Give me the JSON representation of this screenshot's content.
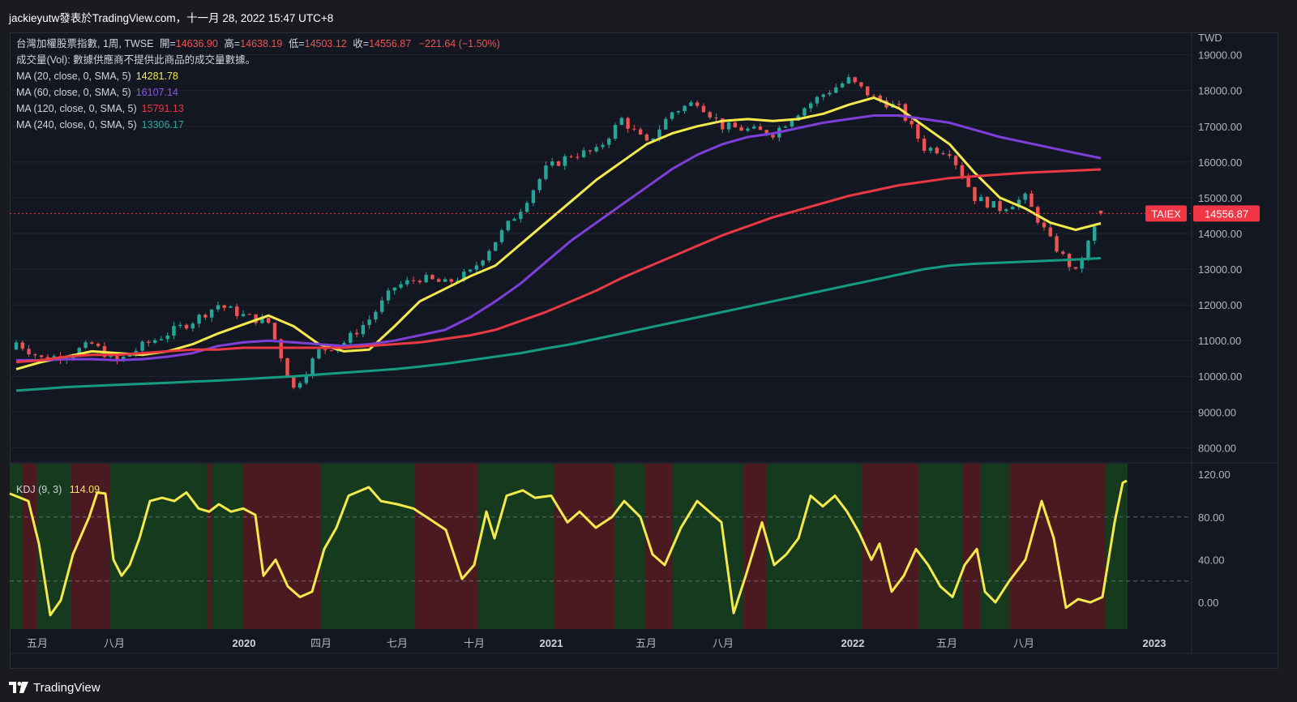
{
  "header": {
    "title": "jackieyutw發表於TradingView.com，十一月 28, 2022 15:47 UTC+8"
  },
  "legend": {
    "symbol_line": "台灣加權股票指數, 1周, TWSE",
    "open_label": "開=",
    "open": "14636.90",
    "high_label": "高=",
    "high": "14638.19",
    "low_label": "低=",
    "low": "14503.12",
    "close_label": "收=",
    "close": "14556.87",
    "change": "−221.64 (−1.50%)",
    "volume_line": "成交量(Vol): 數據供應商不提供此商品的成交量數據。",
    "ma": [
      {
        "label": "MA (20, close, 0, SMA, 5)",
        "value": "14281.78",
        "color": "#f5e94b"
      },
      {
        "label": "MA (60, close, 0, SMA, 5)",
        "value": "16107.14",
        "color": "#7e3fd9"
      },
      {
        "label": "MA (120, close, 0, SMA, 5)",
        "value": "15791.13",
        "color": "#ea3943"
      },
      {
        "label": "MA (240, close, 0, SMA, 5)",
        "value": "13306.17",
        "color": "#169b83"
      }
    ]
  },
  "price_axis": {
    "currency": "TWD",
    "ticks": [
      "19000.00",
      "18000.00",
      "17000.00",
      "16000.00",
      "15000.00",
      "14000.00",
      "13000.00",
      "12000.00",
      "11000.00",
      "10000.00",
      "9000.00",
      "8000.00"
    ]
  },
  "price_badge": {
    "symbol": "TAIEX",
    "value": "14556.87"
  },
  "kdj": {
    "label": "KDJ (9, 3)",
    "value": "114.09",
    "ticks": [
      "120.00",
      "80.00",
      "40.00",
      "0.00"
    ]
  },
  "time_axis": {
    "labels": [
      "五月",
      "八月",
      "2020",
      "四月",
      "七月",
      "十月",
      "2021",
      "五月",
      "八月",
      "2022",
      "五月",
      "八月",
      "2023"
    ]
  },
  "footer": {
    "brand": "TradingView"
  },
  "colors": {
    "up": "#26a69a",
    "down": "#ef5350",
    "ma20": "#f5e94b",
    "ma60": "#7e3fd9",
    "ma120": "#ea3943",
    "ma240": "#169b83",
    "kdj": "#f5e94b",
    "bg_green": "#153a1d",
    "bg_red": "#4a1a20",
    "badge": "#f23645"
  },
  "chart_data": {
    "type": "line",
    "title": "台灣加權股票指數, 1周, TWSE",
    "ylabel": "TWD",
    "ylim": [
      7600,
      19400
    ],
    "x": [
      "2019-04",
      "2019-05",
      "2019-06",
      "2019-07",
      "2019-08",
      "2019-09",
      "2019-10",
      "2019-11",
      "2019-12",
      "2020-01",
      "2020-02",
      "2020-03",
      "2020-04",
      "2020-05",
      "2020-06",
      "2020-07",
      "2020-08",
      "2020-09",
      "2020-10",
      "2020-11",
      "2020-12",
      "2021-01",
      "2021-02",
      "2021-03",
      "2021-04",
      "2021-05",
      "2021-06",
      "2021-07",
      "2021-08",
      "2021-09",
      "2021-10",
      "2021-11",
      "2021-12",
      "2022-01",
      "2022-02",
      "2022-03",
      "2022-04",
      "2022-05",
      "2022-06",
      "2022-07",
      "2022-08",
      "2022-09",
      "2022-10",
      "2022-11"
    ],
    "series": [
      {
        "name": "台灣加權股票指數",
        "values": [
          10950,
          10500,
          10600,
          10900,
          10400,
          10850,
          11200,
          11550,
          12000,
          11700,
          11500,
          9650,
          10700,
          10950,
          11600,
          12500,
          12750,
          12600,
          12900,
          13800,
          14700,
          15800,
          16200,
          16300,
          17200,
          16500,
          17400,
          17700,
          17000,
          16900,
          16800,
          17400,
          17900,
          18300,
          17800,
          17500,
          16400,
          16300,
          15000,
          14700,
          15000,
          13800,
          12900,
          14556.87
        ]
      },
      {
        "name": "MA (20, close, 0, SMA, 5)",
        "values": [
          10200,
          10400,
          10550,
          10700,
          10650,
          10600,
          10700,
          10900,
          11200,
          11450,
          11700,
          11400,
          10900,
          10700,
          10750,
          11400,
          12100,
          12450,
          12800,
          13100,
          13700,
          14300,
          14900,
          15500,
          16000,
          16500,
          16800,
          17000,
          17150,
          17200,
          17150,
          17200,
          17350,
          17600,
          17800,
          17500,
          17000,
          16500,
          15700,
          15000,
          14700,
          14300,
          14100,
          14281.78
        ]
      },
      {
        "name": "MA (60, close, 0, SMA, 5)",
        "values": [
          10450,
          10450,
          10480,
          10480,
          10450,
          10480,
          10550,
          10650,
          10850,
          10950,
          11000,
          10950,
          10900,
          10850,
          10900,
          11000,
          11150,
          11300,
          11650,
          12100,
          12600,
          13200,
          13800,
          14300,
          14800,
          15300,
          15800,
          16200,
          16500,
          16700,
          16800,
          16950,
          17100,
          17200,
          17300,
          17300,
          17200,
          17100,
          16900,
          16700,
          16550,
          16400,
          16250,
          16107.14
        ]
      },
      {
        "name": "MA (120, close, 0, SMA, 5)",
        "values": [
          10400,
          10450,
          10550,
          10600,
          10600,
          10650,
          10700,
          10750,
          10750,
          10800,
          10800,
          10800,
          10800,
          10800,
          10850,
          10900,
          10950,
          11050,
          11150,
          11300,
          11550,
          11800,
          12100,
          12400,
          12750,
          13050,
          13350,
          13650,
          13950,
          14200,
          14450,
          14650,
          14850,
          15050,
          15200,
          15350,
          15450,
          15550,
          15600,
          15650,
          15700,
          15730,
          15760,
          15791.13
        ]
      },
      {
        "name": "MA (240, close, 0, SMA, 5)",
        "values": [
          9600,
          9650,
          9700,
          9730,
          9760,
          9790,
          9820,
          9850,
          9880,
          9920,
          9960,
          10000,
          10050,
          10100,
          10150,
          10200,
          10270,
          10350,
          10450,
          10550,
          10650,
          10780,
          10900,
          11050,
          11200,
          11350,
          11500,
          11650,
          11800,
          11950,
          12100,
          12250,
          12400,
          12550,
          12700,
          12850,
          13000,
          13100,
          13150,
          13180,
          13210,
          13240,
          13270,
          13306.17
        ]
      }
    ]
  }
}
